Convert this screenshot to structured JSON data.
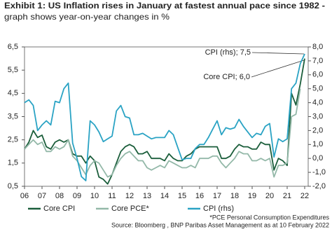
{
  "chart_data": {
    "type": "line",
    "title": "Exhibit 1: US Inflation rises in January at fastest annual pace since 1982  -",
    "subtitle": "graph shows year-on-year changes in %",
    "x": [
      2006,
      2006.25,
      2006.5,
      2006.75,
      2007,
      2007.25,
      2007.5,
      2007.75,
      2008,
      2008.25,
      2008.5,
      2008.75,
      2009,
      2009.25,
      2009.5,
      2009.75,
      2010,
      2010.25,
      2010.5,
      2010.75,
      2011,
      2011.25,
      2011.5,
      2011.75,
      2012,
      2012.25,
      2012.5,
      2012.75,
      2013,
      2013.25,
      2013.5,
      2013.75,
      2014,
      2014.25,
      2014.5,
      2014.75,
      2015,
      2015.25,
      2015.5,
      2015.75,
      2016,
      2016.25,
      2016.5,
      2016.75,
      2017,
      2017.25,
      2017.5,
      2017.75,
      2018,
      2018.25,
      2018.5,
      2018.75,
      2019,
      2019.25,
      2019.5,
      2019.75,
      2020,
      2020.25,
      2020.5,
      2020.75,
      2021,
      2021.25,
      2021.5,
      2021.75,
      2022
    ],
    "series": [
      {
        "name": "Core CPI",
        "color": "#1b5e3b",
        "values": [
          2.1,
          2.4,
          2.9,
          2.6,
          2.7,
          2.2,
          2.1,
          2.4,
          2.5,
          2.4,
          2.5,
          1.9,
          1.8,
          1.8,
          1.5,
          1.8,
          1.6,
          0.9,
          0.8,
          0.6,
          1.0,
          1.5,
          2.0,
          2.2,
          2.3,
          2.2,
          1.9,
          1.9,
          2.0,
          1.7,
          1.7,
          1.7,
          1.6,
          1.9,
          1.7,
          1.6,
          1.6,
          1.8,
          1.9,
          2.1,
          2.2,
          2.2,
          2.2,
          2.2,
          2.2,
          1.7,
          1.7,
          1.8,
          2.1,
          2.3,
          2.2,
          2.2,
          2.1,
          2.1,
          2.4,
          2.3,
          2.3,
          1.2,
          1.7,
          1.6,
          1.4,
          4.5,
          4.0,
          4.9,
          6.0
        ]
      },
      {
        "name": "Core PCE*",
        "color": "#93b8a8",
        "values": [
          2.1,
          2.3,
          2.5,
          2.3,
          2.4,
          2.0,
          2.0,
          2.2,
          2.1,
          2.2,
          2.5,
          1.8,
          1.6,
          1.3,
          1.0,
          1.4,
          1.6,
          1.5,
          1.2,
          0.9,
          1.0,
          1.4,
          1.7,
          1.9,
          2.0,
          1.8,
          1.6,
          1.6,
          1.3,
          1.2,
          1.3,
          1.4,
          1.3,
          1.6,
          1.5,
          1.4,
          1.3,
          1.3,
          1.4,
          1.3,
          1.7,
          1.7,
          1.7,
          1.8,
          1.8,
          1.5,
          1.3,
          1.5,
          1.7,
          2.0,
          1.9,
          1.9,
          1.6,
          1.6,
          1.7,
          1.6,
          1.7,
          0.9,
          1.4,
          1.4,
          1.5,
          3.5,
          3.6,
          4.7,
          null
        ]
      },
      {
        "name": "CPI (rhs)",
        "color": "#2aa3c4",
        "axis": "y2",
        "values": [
          4.0,
          4.2,
          3.8,
          2.0,
          2.4,
          2.7,
          2.4,
          4.1,
          4.0,
          5.0,
          5.4,
          1.1,
          0.0,
          -1.3,
          -1.6,
          2.7,
          2.4,
          1.9,
          1.2,
          1.4,
          1.6,
          3.4,
          3.8,
          3.0,
          2.9,
          1.7,
          1.7,
          1.8,
          1.6,
          1.4,
          1.5,
          1.5,
          1.5,
          2.0,
          1.7,
          0.8,
          -0.1,
          0.0,
          0.0,
          0.7,
          1.0,
          1.0,
          1.5,
          2.1,
          2.7,
          1.7,
          2.2,
          2.1,
          2.2,
          2.8,
          2.3,
          1.9,
          1.5,
          1.8,
          1.7,
          2.3,
          2.5,
          0.1,
          1.4,
          1.2,
          1.4,
          5.0,
          5.4,
          6.8,
          7.5
        ]
      }
    ],
    "xlim": [
      2006,
      2022.2
    ],
    "xticks": [
      {
        "value": 2006,
        "label": "06"
      },
      {
        "value": 2007,
        "label": "07"
      },
      {
        "value": 2008,
        "label": "08"
      },
      {
        "value": 2009,
        "label": "09"
      },
      {
        "value": 2010,
        "label": "10"
      },
      {
        "value": 2011,
        "label": "11"
      },
      {
        "value": 2012,
        "label": "12"
      },
      {
        "value": 2013,
        "label": "13"
      },
      {
        "value": 2014,
        "label": "14"
      },
      {
        "value": 2015,
        "label": "15"
      },
      {
        "value": 2016,
        "label": "16"
      },
      {
        "value": 2017,
        "label": "17"
      },
      {
        "value": 2018,
        "label": "18"
      },
      {
        "value": 2019,
        "label": "19"
      },
      {
        "value": 2020,
        "label": "20"
      },
      {
        "value": 2021,
        "label": "21"
      },
      {
        "value": 2022,
        "label": "22"
      }
    ],
    "ylim": [
      0.5,
      6.5
    ],
    "yticks": [
      {
        "value": 0.5,
        "label": "0,5"
      },
      {
        "value": 1.5,
        "label": "1,5"
      },
      {
        "value": 2.5,
        "label": "2,5"
      },
      {
        "value": 3.5,
        "label": "3,5"
      },
      {
        "value": 4.5,
        "label": "4,5"
      },
      {
        "value": 5.5,
        "label": "5,5"
      },
      {
        "value": 6.5,
        "label": "6,5"
      }
    ],
    "y2lim": [
      -2,
      8
    ],
    "y2ticks": [
      {
        "value": -2,
        "label": "-2,0"
      },
      {
        "value": -1,
        "label": "-1,0"
      },
      {
        "value": 0,
        "label": "0,0"
      },
      {
        "value": 1,
        "label": "1,0"
      },
      {
        "value": 2,
        "label": "2,0"
      },
      {
        "value": 3,
        "label": "3,0"
      },
      {
        "value": 4,
        "label": "4,0"
      },
      {
        "value": 5,
        "label": "5,0"
      },
      {
        "value": 6,
        "label": "6,0"
      },
      {
        "value": 7,
        "label": "7,0"
      },
      {
        "value": 8,
        "label": "8,0"
      }
    ],
    "grid": false,
    "legend": "bottom",
    "annotations": [
      "CPI (rhs); 7,5",
      "Core CPI; 6,0"
    ],
    "footnote": "*PCE  Personal Consumption Expenditures",
    "source": "Source: Bloomberg , BNP Paribas Asset Management as at 10 February 2022"
  }
}
